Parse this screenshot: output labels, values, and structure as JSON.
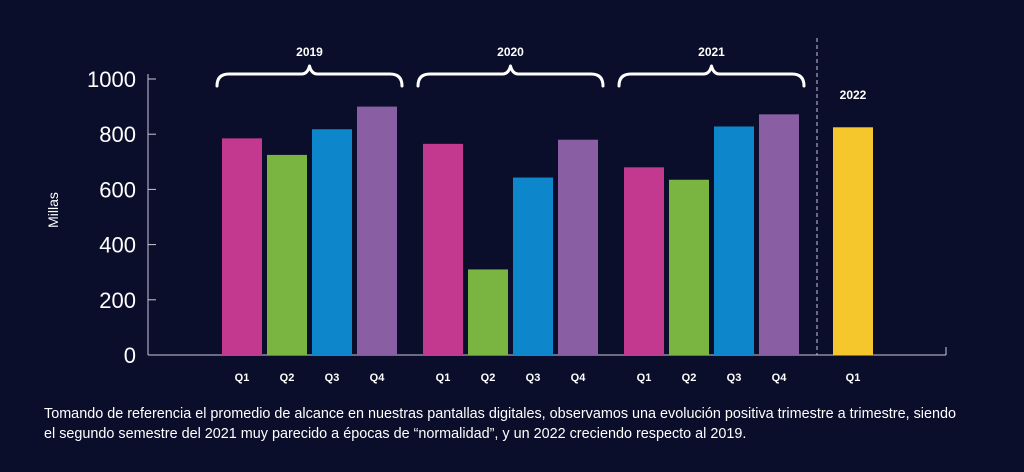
{
  "chart_data": {
    "type": "bar",
    "ylabel": "Millas",
    "ylim": [
      0,
      1000
    ],
    "yticks": [
      0,
      200,
      400,
      600,
      800,
      1000
    ],
    "groups": [
      {
        "label": "2019",
        "bars": [
          {
            "category": "Q1",
            "value": 785,
            "color": "#c2398f"
          },
          {
            "category": "Q2",
            "value": 725,
            "color": "#7ab542"
          },
          {
            "category": "Q3",
            "value": 818,
            "color": "#0e86cc"
          },
          {
            "category": "Q4",
            "value": 900,
            "color": "#8a5ea2"
          }
        ]
      },
      {
        "label": "2020",
        "bars": [
          {
            "category": "Q1",
            "value": 765,
            "color": "#c2398f"
          },
          {
            "category": "Q2",
            "value": 310,
            "color": "#7ab542"
          },
          {
            "category": "Q3",
            "value": 643,
            "color": "#0e86cc"
          },
          {
            "category": "Q4",
            "value": 780,
            "color": "#8a5ea2"
          }
        ]
      },
      {
        "label": "2021",
        "bars": [
          {
            "category": "Q1",
            "value": 680,
            "color": "#c2398f"
          },
          {
            "category": "Q2",
            "value": 635,
            "color": "#7ab542"
          },
          {
            "category": "Q3",
            "value": 828,
            "color": "#0e86cc"
          },
          {
            "category": "Q4",
            "value": 872,
            "color": "#8a5ea2"
          }
        ]
      },
      {
        "label": "2022",
        "bars": [
          {
            "category": "Q1",
            "value": 825,
            "color": "#f6c72d"
          }
        ]
      }
    ],
    "grid": false,
    "legend": "none"
  },
  "caption": "Tomando de referencia el promedio de alcance en nuestras pantallas digitales, observamos una evolución positiva trimestre a trimestre, siendo el segundo semestre del 2021 muy parecido a épocas de “normalidad”, y un 2022 creciendo respecto al 2019.",
  "colors": {
    "background": "#0a0e2a",
    "axis": "#c8cad8",
    "text": "#ffffff"
  }
}
